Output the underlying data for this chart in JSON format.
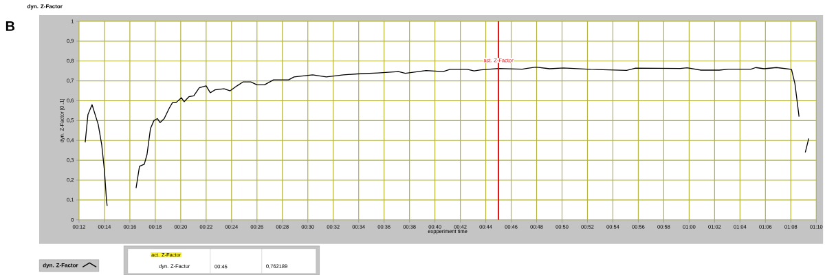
{
  "chart_data": {
    "type": "line",
    "title": "dyn. Z-Factor",
    "xlabel": "expperiment time",
    "ylabel": "dyn. Z-Factor [0..1]",
    "annotations": [
      "B",
      "00:45",
      "0,762189"
    ],
    "series": [
      {
        "name": "dyn. Z-Factor",
        "color": "#000000",
        "x": [
          0.2081,
          0.2117,
          0.2171,
          0.2252,
          0.2297,
          0.2333,
          0.236,
          0.2369,
          0.255,
          0.2748,
          0.2793,
          0.2856,
          0.2892,
          0.2937,
          0.2982,
          0.3027,
          0.3063,
          0.3117,
          0.318,
          0.3225,
          0.327,
          0.3342,
          0.3378,
          0.3441,
          0.3505,
          0.3577,
          0.3667,
          0.3721,
          0.3784,
          0.3901,
          0.3982,
          0.4072,
          0.4153,
          0.4252,
          0.4333,
          0.4432,
          0.455,
          0.4748,
          0.482,
          0.5063,
          0.5243,
          0.5468,
          0.5649,
          0.5919,
          0.6189,
          0.6279,
          0.655,
          0.6775,
          0.6865,
          0.709,
          0.718,
          0.727,
          0.75,
          0.7811,
          0.7991,
          0.8171,
          0.8351,
          0.8712,
          0.918,
          0.9297,
          0.9883,
          0.9973,
          1.0153,
          1.0396,
          1.0514,
          1.0811,
          1.0874,
          1.0982,
          1.1144,
          1.1342,
          1.1387,
          1.1441,
          1.148,
          1.1523,
          1.1568
        ],
        "values": [
          0.39,
          0.53,
          0.58,
          0.48,
          0.38,
          0.25,
          0.1,
          0.07,
          null,
          0.16,
          0.27,
          0.28,
          0.33,
          0.46,
          0.5,
          0.51,
          0.49,
          0.51,
          0.56,
          0.59,
          0.59,
          0.615,
          0.595,
          0.62,
          0.625,
          0.665,
          0.675,
          0.64,
          0.655,
          0.66,
          0.65,
          0.675,
          0.695,
          0.695,
          0.68,
          0.68,
          0.705,
          0.705,
          0.72,
          0.73,
          0.72,
          0.73,
          0.735,
          0.74,
          0.747,
          0.738,
          0.752,
          0.747,
          0.758,
          0.758,
          0.75,
          0.755,
          0.762,
          0.759,
          0.769,
          0.761,
          0.765,
          0.758,
          0.753,
          0.764,
          0.762,
          0.766,
          0.754,
          0.754,
          0.759,
          0.759,
          0.767,
          0.761,
          0.767,
          0.758,
          0.686,
          0.52,
          null,
          0.34,
          0.41
        ]
      }
    ],
    "xlim": [
      0.2,
      1.16667
    ],
    "ylim": [
      0,
      1
    ],
    "xticks": [
      {
        "value": 0.2,
        "label": "00:12"
      },
      {
        "value": 0.23333,
        "label": "00:14"
      },
      {
        "value": 0.26667,
        "label": "00:16"
      },
      {
        "value": 0.3,
        "label": "00:18"
      },
      {
        "value": 0.33333,
        "label": "00:20"
      },
      {
        "value": 0.36667,
        "label": "00:22"
      },
      {
        "value": 0.4,
        "label": "00:24"
      },
      {
        "value": 0.43333,
        "label": "00:26"
      },
      {
        "value": 0.46667,
        "label": "00:28"
      },
      {
        "value": 0.5,
        "label": "00:30"
      },
      {
        "value": 0.53333,
        "label": "00:32"
      },
      {
        "value": 0.56667,
        "label": "00:34"
      },
      {
        "value": 0.6,
        "label": "00:36"
      },
      {
        "value": 0.63333,
        "label": "00:38"
      },
      {
        "value": 0.66667,
        "label": "00:40"
      },
      {
        "value": 0.7,
        "label": "00:42"
      },
      {
        "value": 0.73333,
        "label": "00:44"
      },
      {
        "value": 0.76667,
        "label": "00:46"
      },
      {
        "value": 0.8,
        "label": "00:48"
      },
      {
        "value": 0.83333,
        "label": "00:50"
      },
      {
        "value": 0.86667,
        "label": "00:52"
      },
      {
        "value": 0.9,
        "label": "00:54"
      },
      {
        "value": 0.93333,
        "label": "00:56"
      },
      {
        "value": 0.96667,
        "label": "00:58"
      },
      {
        "value": 1.0,
        "label": "01:00"
      },
      {
        "value": 1.03333,
        "label": "01:02"
      },
      {
        "value": 1.06667,
        "label": "01:04"
      },
      {
        "value": 1.1,
        "label": "01:06"
      },
      {
        "value": 1.13333,
        "label": "01:08"
      },
      {
        "value": 1.16667,
        "label": "01:10"
      }
    ],
    "yticks": [
      0,
      {
        "value": 0.1,
        "label": "0,1"
      },
      {
        "value": 0.2,
        "label": "0,2"
      },
      {
        "value": 0.3,
        "label": "0,3"
      },
      {
        "value": 0.4,
        "label": "0,4"
      },
      {
        "value": 0.5,
        "label": "0,5"
      },
      {
        "value": 0.6,
        "label": "0,6"
      },
      {
        "value": 0.7,
        "label": "0,7"
      },
      {
        "value": 0.8,
        "label": "0,8"
      },
      {
        "value": 0.9,
        "label": "0,9"
      },
      1
    ],
    "ref_lines": [
      {
        "axis": "x",
        "value": 0.75,
        "label": "act. Z-Factor",
        "color": "#e01010"
      }
    ],
    "grid": true,
    "legend": "bottom left",
    "line_style": "solid",
    "marker": "none"
  }
}
